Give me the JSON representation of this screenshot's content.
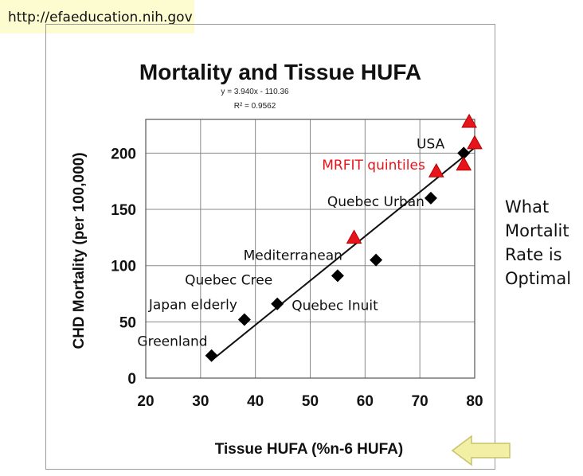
{
  "header": {
    "url": "http://efaeducation.nih.gov"
  },
  "side_note": {
    "lines": [
      "What",
      "Mortalit",
      "Rate is",
      "Optimal"
    ]
  },
  "chart_data": {
    "type": "scatter",
    "title": "Mortality and Tissue HUFA",
    "xlabel": "Tissue HUFA (%n-6 HUFA)",
    "ylabel": "CHD Mortality (per 100,000)",
    "xlim": [
      20,
      80
    ],
    "ylim": [
      0,
      230
    ],
    "xticks": [
      20,
      30,
      40,
      50,
      60,
      70,
      80
    ],
    "yticks": [
      0,
      50,
      100,
      150,
      200
    ],
    "grid": true,
    "trendline": {
      "equation": "y = 3.940x - 110.36",
      "r2": "R² = 0.9562",
      "slope": 3.94,
      "intercept": -110.36,
      "x_range": [
        32,
        80
      ]
    },
    "series": [
      {
        "marker": "diamond",
        "color": "#000000",
        "points": [
          {
            "x": 32,
            "y": 20
          },
          {
            "x": 38,
            "y": 52
          },
          {
            "x": 44,
            "y": 66
          },
          {
            "x": 55,
            "y": 91
          },
          {
            "x": 62,
            "y": 105
          },
          {
            "x": 72,
            "y": 160
          },
          {
            "x": 78,
            "y": 200
          }
        ]
      },
      {
        "name": "MRFIT quintiles",
        "marker": "triangle",
        "color": "#e8141b",
        "points": [
          {
            "x": 58,
            "y": 125
          },
          {
            "x": 73,
            "y": 184
          },
          {
            "x": 78,
            "y": 190
          },
          {
            "x": 79,
            "y": 228
          },
          {
            "x": 80,
            "y": 209
          }
        ]
      }
    ],
    "annotations": [
      {
        "text": "Greenland",
        "x": 32,
        "y": 20,
        "anchor": "end",
        "dx": -5,
        "dy": -12,
        "color": "#111111"
      },
      {
        "text": "Japan elderly",
        "x": 38,
        "y": 52,
        "anchor": "end",
        "dx": -9,
        "dy": -13,
        "color": "#111111"
      },
      {
        "text": "Quebec Cree",
        "x": 44,
        "y": 66,
        "anchor": "end",
        "dx": -6,
        "dy": -24,
        "color": "#111111"
      },
      {
        "text": "Quebec Inuit",
        "x": 44,
        "y": 66,
        "anchor": "start",
        "dx": 18,
        "dy": 8,
        "color": "#111111"
      },
      {
        "text": "Mediterranean",
        "x": 55,
        "y": 91,
        "anchor": "end",
        "dx": 6,
        "dy": -20,
        "color": "#111111"
      },
      {
        "text": "Quebec Urban",
        "x": 72,
        "y": 160,
        "anchor": "end",
        "dx": -8,
        "dy": 10,
        "color": "#111111"
      },
      {
        "text": "USA",
        "x": 78,
        "y": 200,
        "anchor": "end",
        "dx": -24,
        "dy": -6,
        "color": "#111111"
      },
      {
        "text": "MRFIT quintiles",
        "x": 73,
        "y": 184,
        "anchor": "end",
        "dx": -14,
        "dy": -2,
        "color": "#e8141b"
      }
    ],
    "arrow_color": "#f1f0a4"
  }
}
